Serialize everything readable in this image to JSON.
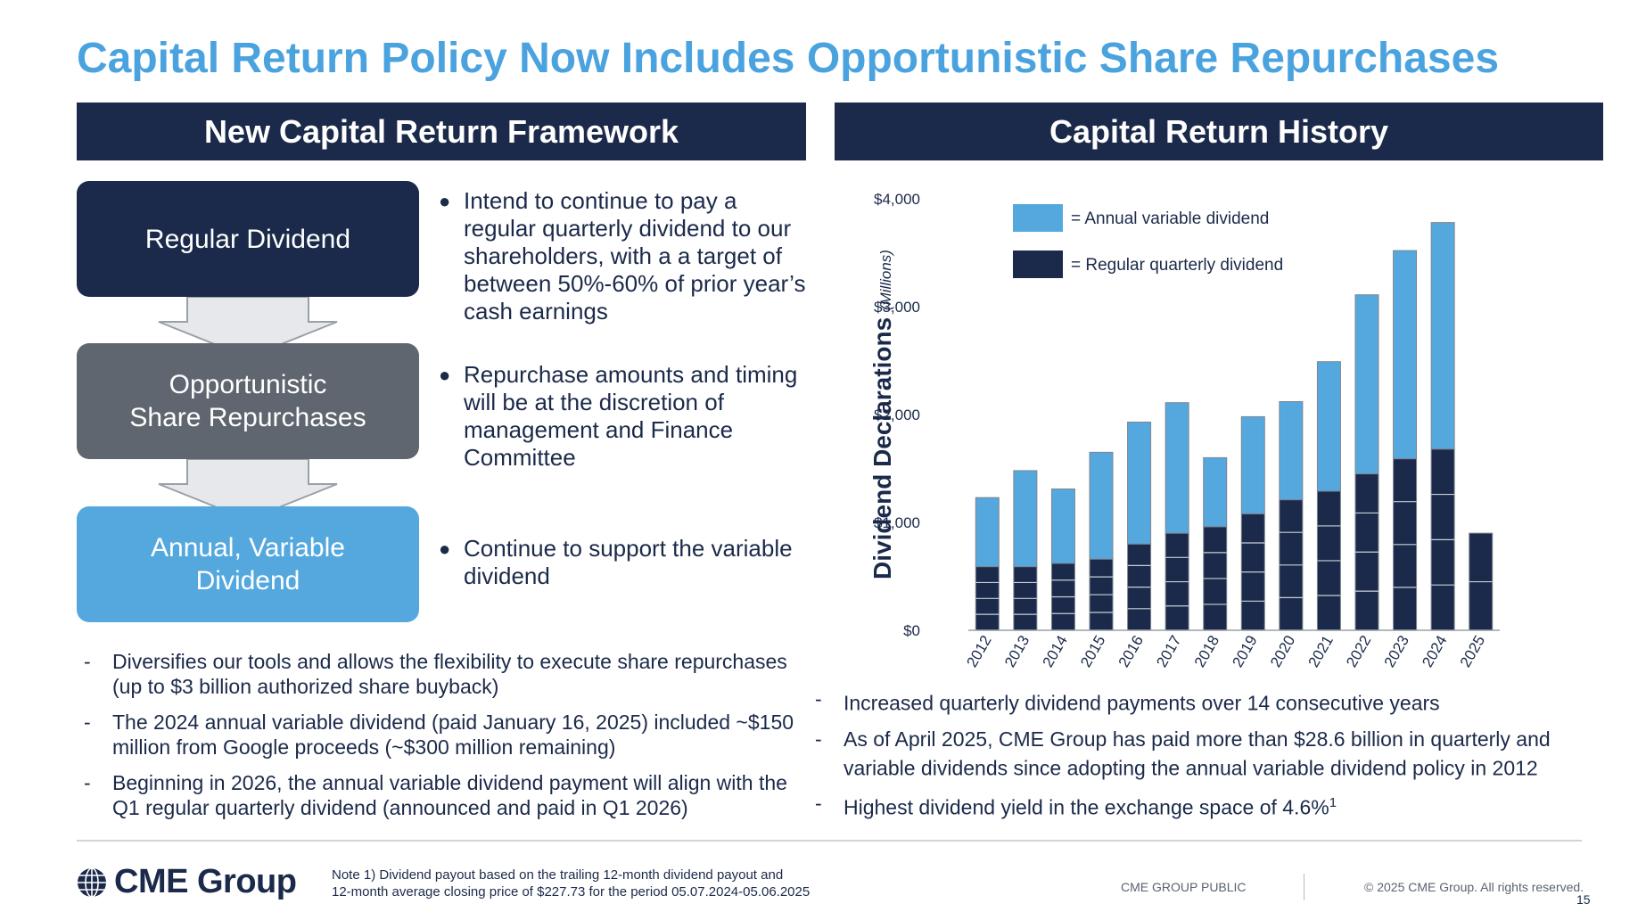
{
  "slide_title": "Capital Return Policy Now Includes Opportunistic Share Repurchases",
  "left_panel": {
    "header": "New Capital Return Framework",
    "boxes": [
      {
        "label_line1": "Regular Dividend",
        "label_line2": ""
      },
      {
        "label_line1": "Opportunistic",
        "label_line2": "Share Repurchases"
      },
      {
        "label_line1": "Annual, Variable",
        "label_line2": "Dividend"
      }
    ],
    "bullets": [
      "Intend to continue to pay a regular quarterly dividend to our shareholders, with a a target of between 50%-60% of prior year’s cash earnings",
      "Repurchase amounts and timing will be at the discretion of management and Finance Committee",
      "Continue to support the variable dividend"
    ],
    "notes": [
      "Diversifies our tools and allows the flexibility to execute share repurchases  (up to $3 billion authorized share buyback)",
      "The 2024 annual variable dividend (paid January 16, 2025) included ~$150 million from Google proceeds (~$300 million remaining)",
      "Beginning in 2026, the annual variable dividend payment will align with the Q1 regular quarterly dividend (announced and paid in Q1 2026)"
    ]
  },
  "right_panel": {
    "header": "Capital Return History",
    "notes": [
      {
        "text": "Increased quarterly dividend payments over 14 consecutive years",
        "sup": ""
      },
      {
        "text": "As of April 2025, CME Group has paid more than $28.6 billion in quarterly and variable dividends since adopting the annual variable dividend policy in 2012",
        "sup": ""
      },
      {
        "text": "Highest dividend yield in the exchange space of 4.6%",
        "sup": "1"
      }
    ]
  },
  "chart_data": {
    "type": "bar",
    "stacked": true,
    "ylabel": "Dividend Declarations",
    "ylabel_unit": "(Millions)",
    "ylim": [
      0,
      4000
    ],
    "yticks": [
      0,
      1000,
      2000,
      3000,
      4000
    ],
    "ytick_labels": [
      "$0",
      "$1,000",
      "$2,000",
      "$3,000",
      "$4,000"
    ],
    "categories": [
      "2012",
      "2013",
      "2014",
      "2015",
      "2016",
      "2017",
      "2018",
      "2019",
      "2020",
      "2021",
      "2022",
      "2023",
      "2024",
      "2025"
    ],
    "series": [
      {
        "name": "Regular quarterly dividend",
        "legend_label": "= Regular quarterly dividend",
        "color": "#1b2a4a",
        "values": [
          590,
          590,
          620,
          660,
          800,
          900,
          960,
          1080,
          1210,
          1290,
          1450,
          1590,
          1680,
          900
        ],
        "quarterly_segments": [
          4,
          4,
          4,
          4,
          4,
          4,
          4,
          4,
          4,
          4,
          4,
          4,
          4,
          2
        ]
      },
      {
        "name": "Annual variable dividend",
        "legend_label": "= Annual variable dividend",
        "color": "#55a8de",
        "values": [
          640,
          890,
          690,
          990,
          1130,
          1210,
          640,
          900,
          910,
          1200,
          1660,
          1930,
          2100,
          0
        ]
      }
    ],
    "legend_position": "top-left"
  },
  "footer": {
    "logo_text": "CME Group",
    "footnote_line1": "Note 1) Dividend payout based on the trailing 12-month dividend payout and",
    "footnote_line2": "12-month average closing price of $227.73 for the period 05.07.2024-05.06.2025",
    "classification": "CME GROUP PUBLIC",
    "copyright": "© 2025 CME Group. All rights reserved.",
    "page_number": "15"
  }
}
